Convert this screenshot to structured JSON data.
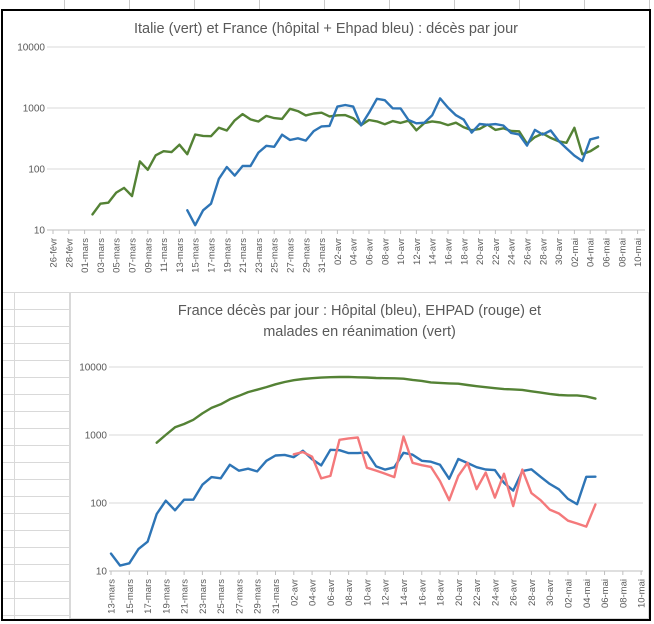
{
  "chart_data": [
    {
      "type": "line",
      "title": "Italie (vert) et France (hôpital + Ehpad bleu) : décès par jour",
      "legend_position": "none",
      "grid": "horizontal-only",
      "y_axis": {
        "scale": "log",
        "min": 10,
        "max": 10000,
        "ticks": [
          10,
          100,
          1000,
          10000
        ]
      },
      "x_axis": {
        "tick_label_interval": 2,
        "dates": [
          "26-févr",
          "27-févr",
          "28-févr",
          "29-févr",
          "01-mars",
          "02-mars",
          "03-mars",
          "04-mars",
          "05-mars",
          "06-mars",
          "07-mars",
          "08-mars",
          "09-mars",
          "10-mars",
          "11-mars",
          "12-mars",
          "13-mars",
          "14-mars",
          "15-mars",
          "16-mars",
          "17-mars",
          "18-mars",
          "19-mars",
          "20-mars",
          "21-mars",
          "22-mars",
          "23-mars",
          "24-mars",
          "25-mars",
          "26-mars",
          "27-mars",
          "28-mars",
          "29-mars",
          "30-mars",
          "31-mars",
          "01-avr",
          "02-avr",
          "03-avr",
          "04-avr",
          "05-avr",
          "06-avr",
          "07-avr",
          "08-avr",
          "09-avr",
          "10-avr",
          "11-avr",
          "12-avr",
          "13-avr",
          "14-avr",
          "15-avr",
          "16-avr",
          "17-avr",
          "18-avr",
          "19-avr",
          "20-avr",
          "21-avr",
          "22-avr",
          "23-avr",
          "24-avr",
          "25-avr",
          "26-avr",
          "27-avr",
          "28-avr",
          "29-avr",
          "30-avr",
          "01-mai",
          "02-mai",
          "03-mai",
          "04-mai",
          "05-mai",
          "06-mai",
          "07-mai",
          "08-mai",
          "09-mai",
          "10-mai"
        ]
      },
      "series": [
        {
          "id": "italie",
          "name": "Italie décès par jour (vert)",
          "color": "#548235",
          "start_index": 5,
          "values": [
            18,
            27,
            28,
            41,
            49,
            36,
            133,
            97,
            168,
            196,
            189,
            250,
            175,
            368,
            349,
            345,
            475,
            427,
            627,
            793,
            651,
            601,
            743,
            683,
            662,
            969,
            889,
            756,
            812,
            837,
            727,
            760,
            766,
            681,
            525,
            636,
            604,
            542,
            610,
            570,
            619,
            431,
            566,
            602,
            578,
            525,
            575,
            482,
            433,
            454,
            534,
            437,
            464,
            420,
            415,
            260,
            333,
            382,
            323,
            285,
            269,
            474,
            174,
            195,
            236
          ]
        },
        {
          "id": "france-total",
          "name": "France hôpital + Ehpad décès par jour (bleu)",
          "color": "#2E75B6",
          "start_index": 17,
          "values": [
            21,
            12,
            21,
            27,
            69,
            108,
            78,
            112,
            112,
            186,
            240,
            231,
            365,
            299,
            319,
            292,
            418,
            499,
            509,
            1053,
            1120,
            1053,
            518,
            833,
            1417,
            1341,
            987,
            985,
            635,
            561,
            574,
            762,
            1438,
            1017,
            761,
            642,
            395,
            547,
            531,
            544,
            516,
            389,
            369,
            242,
            437,
            367,
            427,
            289,
            218,
            166,
            135,
            306,
            330
          ]
        }
      ]
    },
    {
      "type": "line",
      "title": "France décès par jour : Hôpital (bleu), EHPAD (rouge) et malades en réanimation (vert)",
      "title_lines": [
        "France décès par jour : Hôpital  (bleu),  EHPAD (rouge) et",
        "malades en réanimation (vert)"
      ],
      "legend_position": "none",
      "grid": "horizontal-only",
      "y_axis": {
        "scale": "log",
        "min": 10,
        "max": 10000,
        "ticks": [
          10,
          100,
          1000,
          10000
        ]
      },
      "x_axis": {
        "tick_label_interval": 2,
        "dates": [
          "13-mars",
          "14-mars",
          "15-mars",
          "16-mars",
          "17-mars",
          "18-mars",
          "19-mars",
          "20-mars",
          "21-mars",
          "22-mars",
          "23-mars",
          "24-mars",
          "25-mars",
          "26-mars",
          "27-mars",
          "28-mars",
          "29-mars",
          "30-mars",
          "31-mars",
          "01-avr",
          "02-avr",
          "03-avr",
          "04-avr",
          "05-avr",
          "06-avr",
          "07-avr",
          "08-avr",
          "09-avr",
          "10-avr",
          "11-avr",
          "12-avr",
          "13-avr",
          "14-avr",
          "15-avr",
          "16-avr",
          "17-avr",
          "18-avr",
          "19-avr",
          "20-avr",
          "21-avr",
          "22-avr",
          "23-avr",
          "24-avr",
          "25-avr",
          "26-avr",
          "27-avr",
          "28-avr",
          "29-avr",
          "30-avr",
          "01-mai",
          "02-mai",
          "03-mai",
          "04-mai",
          "05-mai",
          "06-mai",
          "07-mai",
          "08-mai",
          "09-mai",
          "10-mai"
        ]
      },
      "series": [
        {
          "id": "hopital",
          "name": "Hôpital décès par jour (bleu)",
          "color": "#2E75B6",
          "start_index": 0,
          "values": [
            18,
            12,
            13,
            21,
            27,
            69,
            108,
            78,
            112,
            112,
            186,
            240,
            231,
            365,
            299,
            319,
            292,
            418,
            499,
            509,
            471,
            588,
            441,
            357,
            605,
            597,
            541,
            542,
            554,
            345,
            310,
            335,
            547,
            514,
            417,
            405,
            364,
            227,
            444,
            387,
            336,
            311,
            305,
            198,
            152,
            295,
            313,
            243,
            191,
            159,
            115,
            96,
            243,
            244
          ]
        },
        {
          "id": "ehpad",
          "name": "EHPAD décès par jour (rouge)",
          "color": "#F4797B",
          "start_index": 20,
          "values": [
            520,
            560,
            480,
            230,
            250,
            850,
            890,
            920,
            330,
            300,
            270,
            240,
            950,
            390,
            360,
            340,
            210,
            110,
            250,
            390,
            160,
            280,
            120,
            270,
            90,
            310,
            140,
            110,
            80,
            70,
            55,
            50,
            45,
            95
          ]
        },
        {
          "id": "reanimation",
          "name": "Malades en réanimation (vert)",
          "color": "#548235",
          "start_index": 5,
          "values": [
            771,
            1002,
            1297,
            1453,
            1674,
            2080,
            2503,
            2827,
            3351,
            3767,
            4273,
            4632,
            5056,
            5565,
            6017,
            6399,
            6662,
            6838,
            6978,
            7072,
            7131,
            7148,
            7066,
            7004,
            6883,
            6845,
            6821,
            6730,
            6457,
            6248,
            5933,
            5833,
            5744,
            5683,
            5433,
            5218,
            5053,
            4870,
            4725,
            4682,
            4608,
            4387,
            4207,
            4019,
            3878,
            3827,
            3819,
            3696,
            3430
          ]
        }
      ]
    }
  ]
}
